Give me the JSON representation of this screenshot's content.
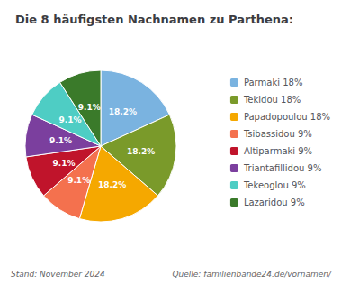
{
  "chart_data": {
    "type": "pie",
    "title": "Die 8 häufigsten Nachnamen zu Parthena:",
    "categories": [
      "Parmaki 18%",
      "Tekidou 18%",
      "Papadopoulou 18%",
      "Tsibassidou 9%",
      "Altiparmaki 9%",
      "Triantafillidou 9%",
      "Tekeoglou 9%",
      "Lazaridou 9%"
    ],
    "values": [
      18.2,
      18.2,
      18.2,
      9.1,
      9.1,
      9.1,
      9.1,
      9.1
    ],
    "value_labels": [
      "18.2%",
      "18.2%",
      "18.2%",
      "9.1%",
      "9.1%",
      "9.1%",
      "9.1%",
      "9.1%"
    ],
    "colors": [
      "#7ab3e0",
      "#7a9a2a",
      "#f5a800",
      "#f4714e",
      "#c0142b",
      "#7b3f9e",
      "#4ecdc4",
      "#3a7a2a"
    ],
    "data_labels": true,
    "legend": "right",
    "annotations": [
      "Stand: November 2024",
      "Quelle: familienbande24.de/vornamen/"
    ]
  }
}
